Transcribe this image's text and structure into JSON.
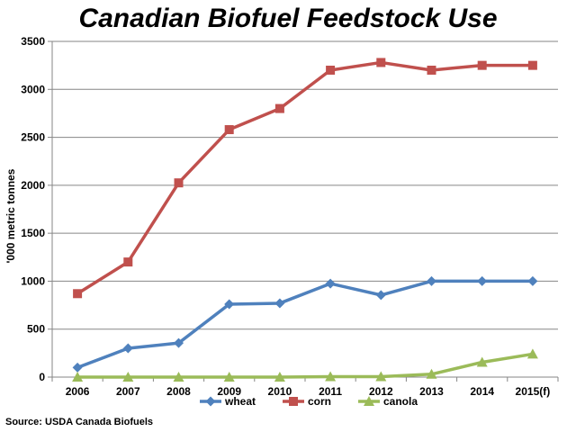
{
  "chart_data": {
    "type": "line",
    "title": "Canadian Biofuel Feedstock Use",
    "ylabel": "'000 metric tonnes",
    "xlabel": "",
    "categories": [
      "2006",
      "2007",
      "2008",
      "2009",
      "2010",
      "2011",
      "2012",
      "2013",
      "2014",
      "2015(f)"
    ],
    "ylim": [
      0,
      3500
    ],
    "yticks": [
      0,
      500,
      1000,
      1500,
      2000,
      2500,
      3000,
      3500
    ],
    "grid": true,
    "legend_position": "bottom",
    "source": "Source: USDA Canada Biofuels",
    "series": [
      {
        "name": "wheat",
        "color": "#4f81bd",
        "marker": "diamond",
        "values": [
          100,
          300,
          355,
          760,
          770,
          975,
          855,
          1000,
          1000,
          1000
        ]
      },
      {
        "name": "corn",
        "color": "#c0504d",
        "marker": "square",
        "values": [
          870,
          1200,
          2025,
          2580,
          2800,
          3200,
          3280,
          3200,
          3250,
          3250
        ]
      },
      {
        "name": "canola",
        "color": "#9bbb59",
        "marker": "triangle",
        "values": [
          0,
          0,
          0,
          0,
          0,
          5,
          5,
          30,
          155,
          240
        ]
      }
    ]
  }
}
